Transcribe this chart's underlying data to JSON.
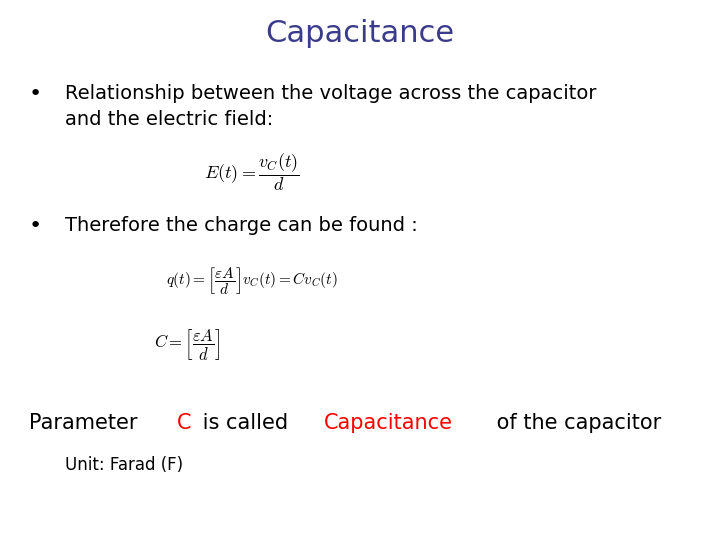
{
  "title": "Capacitance",
  "title_color": "#3B3B8C",
  "title_fontsize": 22,
  "bg_color": "#FFFFFF",
  "bullet1_line1": "Relationship between the voltage across the capacitor",
  "bullet1_line2": "and the electric field:",
  "bullet2": "Therefore the charge can be found :",
  "eq1": "$E(t) = \\dfrac{v_C(t)}{d}$",
  "eq2": "$q(t) = \\left[\\dfrac{\\varepsilon A}{d}\\right] v_C(t) = Cv_C(t)$",
  "eq3": "$C = \\left[\\dfrac{\\varepsilon A}{d}\\right]$",
  "unit_line": "Unit: Farad (F)",
  "text_color": "#000000",
  "red_color": "#FF0000",
  "bullet_fontsize": 14,
  "eq1_fontsize": 13,
  "eq2_fontsize": 11,
  "eq3_fontsize": 12,
  "param_fontsize": 15,
  "unit_fontsize": 12,
  "param_pieces": [
    [
      "Parameter ",
      "#000000"
    ],
    [
      "C",
      "#FF0000"
    ],
    [
      " is called ",
      "#000000"
    ],
    [
      "Capacitance",
      "#FF0000"
    ],
    [
      " of the capacitor",
      "#000000"
    ]
  ]
}
